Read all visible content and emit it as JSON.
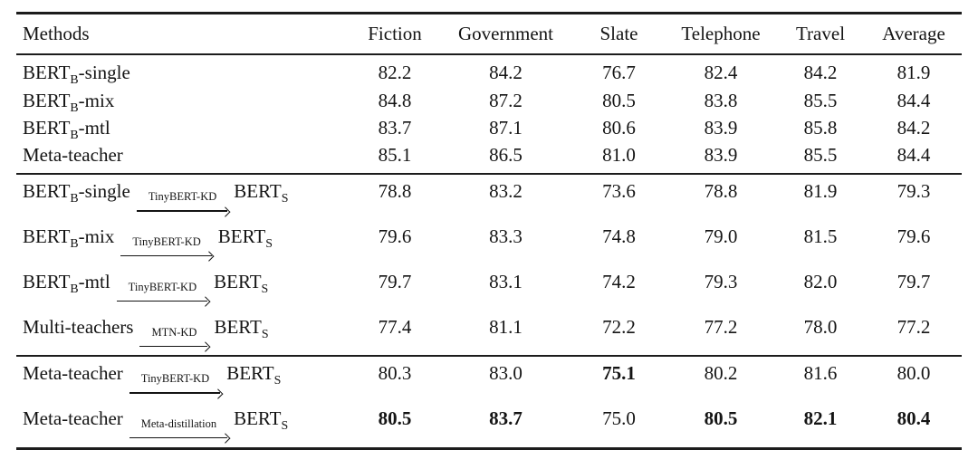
{
  "header": {
    "columns": [
      "Methods",
      "Fiction",
      "Government",
      "Slate",
      "Telephone",
      "Travel",
      "Average"
    ]
  },
  "sections": [
    {
      "name": "teacher-models",
      "rows": [
        {
          "method": {
            "pre": "BERT",
            "pre_sub": "B",
            "post": "-single"
          },
          "values": [
            "82.2",
            "84.2",
            "76.7",
            "82.4",
            "84.2",
            "81.9"
          ],
          "bold": [
            false,
            false,
            false,
            false,
            false,
            false
          ]
        },
        {
          "method": {
            "pre": "BERT",
            "pre_sub": "B",
            "post": "-mix"
          },
          "values": [
            "84.8",
            "87.2",
            "80.5",
            "83.8",
            "85.5",
            "84.4"
          ],
          "bold": [
            false,
            false,
            false,
            false,
            false,
            false
          ]
        },
        {
          "method": {
            "pre": "BERT",
            "pre_sub": "B",
            "post": "-mtl"
          },
          "values": [
            "83.7",
            "87.1",
            "80.6",
            "83.9",
            "85.8",
            "84.2"
          ],
          "bold": [
            false,
            false,
            false,
            false,
            false,
            false
          ]
        },
        {
          "method": {
            "pre": "Meta-teacher"
          },
          "values": [
            "85.1",
            "86.5",
            "81.0",
            "83.9",
            "85.5",
            "84.4"
          ],
          "bold": [
            false,
            false,
            false,
            false,
            false,
            false
          ]
        }
      ]
    },
    {
      "name": "baseline-distillation",
      "rows": [
        {
          "method": {
            "pre": "BERT",
            "pre_sub": "B",
            "post": "-single",
            "arrow_label": "TinyBERT-KD",
            "target": "BERT",
            "target_sub": "S"
          },
          "values": [
            "78.8",
            "83.2",
            "73.6",
            "78.8",
            "81.9",
            "79.3"
          ],
          "bold": [
            false,
            false,
            false,
            false,
            false,
            false
          ]
        },
        {
          "method": {
            "pre": "BERT",
            "pre_sub": "B",
            "post": "-mix",
            "arrow_label": "TinyBERT-KD",
            "target": "BERT",
            "target_sub": "S"
          },
          "values": [
            "79.6",
            "83.3",
            "74.8",
            "79.0",
            "81.5",
            "79.6"
          ],
          "bold": [
            false,
            false,
            false,
            false,
            false,
            false
          ]
        },
        {
          "method": {
            "pre": "BERT",
            "pre_sub": "B",
            "post": "-mtl",
            "arrow_label": "TinyBERT-KD",
            "target": "BERT",
            "target_sub": "S"
          },
          "values": [
            "79.7",
            "83.1",
            "74.2",
            "79.3",
            "82.0",
            "79.7"
          ],
          "bold": [
            false,
            false,
            false,
            false,
            false,
            false
          ]
        },
        {
          "method": {
            "pre": "Multi-teachers",
            "arrow_label": "MTN-KD",
            "target": "BERT",
            "target_sub": "S"
          },
          "values": [
            "77.4",
            "81.1",
            "72.2",
            "77.2",
            "78.0",
            "77.2"
          ],
          "bold": [
            false,
            false,
            false,
            false,
            false,
            false
          ]
        }
      ]
    },
    {
      "name": "meta-teacher-distillation",
      "rows": [
        {
          "method": {
            "pre": "Meta-teacher",
            "arrow_label": "TinyBERT-KD",
            "target": "BERT",
            "target_sub": "S"
          },
          "values": [
            "80.3",
            "83.0",
            "75.1",
            "80.2",
            "81.6",
            "80.0"
          ],
          "bold": [
            false,
            false,
            true,
            false,
            false,
            false
          ]
        },
        {
          "method": {
            "pre": "Meta-teacher",
            "arrow_label": "Meta-distillation",
            "target": "BERT",
            "target_sub": "S"
          },
          "values": [
            "80.5",
            "83.7",
            "75.0",
            "80.5",
            "82.1",
            "80.4"
          ],
          "bold": [
            true,
            true,
            false,
            true,
            true,
            true
          ]
        }
      ]
    }
  ]
}
